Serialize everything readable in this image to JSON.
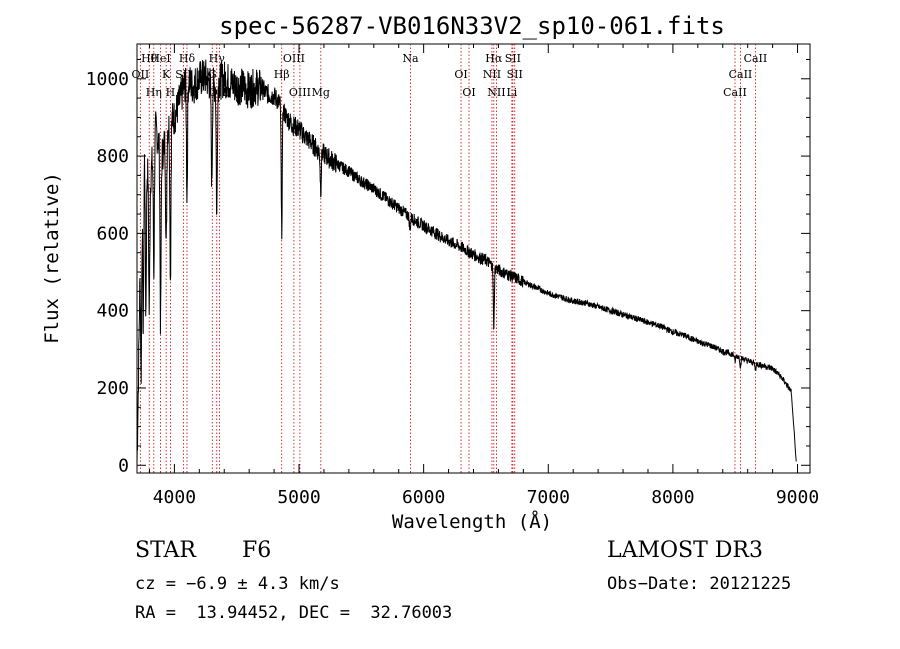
{
  "chart_data": {
    "type": "line",
    "title": "spec-56287-VB016N33V2_sp10-061.fits",
    "xlabel": "Wavelength (Å)",
    "ylabel": "Flux (relative)",
    "xlim": [
      3700,
      9100
    ],
    "ylim": [
      -20,
      1090
    ],
    "xticks": [
      4000,
      5000,
      6000,
      7000,
      8000,
      9000
    ],
    "yticks": [
      0,
      200,
      400,
      600,
      800,
      1000
    ],
    "grid": false,
    "series": [
      {
        "name": "flux",
        "anchors": [
          [
            3700,
            0
          ],
          [
            3712,
            230
          ],
          [
            3730,
            640
          ],
          [
            3760,
            830
          ],
          [
            3800,
            720
          ],
          [
            3850,
            870
          ],
          [
            3900,
            800
          ],
          [
            3950,
            880
          ],
          [
            4000,
            900
          ],
          [
            4050,
            950
          ],
          [
            4100,
            1000
          ],
          [
            4150,
            980
          ],
          [
            4200,
            1000
          ],
          [
            4250,
            1005
          ],
          [
            4300,
            980
          ],
          [
            4350,
            990
          ],
          [
            4400,
            1000
          ],
          [
            4450,
            990
          ],
          [
            4500,
            980
          ],
          [
            4550,
            980
          ],
          [
            4600,
            970
          ],
          [
            4650,
            980
          ],
          [
            4700,
            975
          ],
          [
            4750,
            960
          ],
          [
            4800,
            955
          ],
          [
            4850,
            935
          ],
          [
            4900,
            900
          ],
          [
            4950,
            880
          ],
          [
            5000,
            870
          ],
          [
            5050,
            850
          ],
          [
            5100,
            835
          ],
          [
            5150,
            815
          ],
          [
            5200,
            805
          ],
          [
            5300,
            780
          ],
          [
            5400,
            760
          ],
          [
            5500,
            735
          ],
          [
            5600,
            715
          ],
          [
            5700,
            690
          ],
          [
            5800,
            665
          ],
          [
            5900,
            640
          ],
          [
            6000,
            620
          ],
          [
            6100,
            600
          ],
          [
            6200,
            580
          ],
          [
            6300,
            565
          ],
          [
            6400,
            545
          ],
          [
            6500,
            530
          ],
          [
            6600,
            505
          ],
          [
            6700,
            490
          ],
          [
            6800,
            475
          ],
          [
            6900,
            460
          ],
          [
            7000,
            445
          ],
          [
            7100,
            435
          ],
          [
            7200,
            425
          ],
          [
            7300,
            420
          ],
          [
            7400,
            410
          ],
          [
            7500,
            400
          ],
          [
            7600,
            390
          ],
          [
            7700,
            380
          ],
          [
            7800,
            370
          ],
          [
            7900,
            360
          ],
          [
            8000,
            345
          ],
          [
            8100,
            335
          ],
          [
            8200,
            320
          ],
          [
            8300,
            310
          ],
          [
            8400,
            295
          ],
          [
            8500,
            285
          ],
          [
            8600,
            270
          ],
          [
            8700,
            260
          ],
          [
            8800,
            250
          ],
          [
            8850,
            235
          ],
          [
            8900,
            215
          ],
          [
            8950,
            190
          ],
          [
            8975,
            140
          ],
          [
            8990,
            30
          ]
        ],
        "absorption_dips": [
          [
            3733,
            0.65
          ],
          [
            3750,
            0.55
          ],
          [
            3771,
            0.5
          ],
          [
            3798,
            0.45
          ],
          [
            3835,
            0.4
          ],
          [
            3889,
            0.55
          ],
          [
            3934,
            0.35
          ],
          [
            3968,
            0.45
          ],
          [
            4101,
            0.3
          ],
          [
            4300,
            0.25
          ],
          [
            4340,
            0.35
          ],
          [
            4861,
            0.35
          ],
          [
            5174,
            0.12
          ],
          [
            5890,
            0.05
          ],
          [
            6563,
            0.3
          ],
          [
            8498,
            0.06
          ],
          [
            8542,
            0.08
          ],
          [
            8662,
            0.06
          ]
        ],
        "noise_amplitude": 45
      }
    ],
    "lines": [
      {
        "label": "Hθ",
        "wavelength": 3798
      },
      {
        "label": "OII",
        "wavelength": 3727
      },
      {
        "label": "Hη",
        "wavelength": 3835
      },
      {
        "label": "HeI",
        "wavelength": 3889
      },
      {
        "label": "K",
        "wavelength": 3934
      },
      {
        "label": "H",
        "wavelength": 3968
      },
      {
        "label": "Hδ",
        "wavelength": 4101
      },
      {
        "label": "SII",
        "wavelength": 4072
      },
      {
        "label": "OIII",
        "wavelength": 4363
      },
      {
        "label": "Hγ",
        "wavelength": 4340
      },
      {
        "label": "G",
        "wavelength": 4304
      },
      {
        "label": "OIII",
        "wavelength": 5007
      },
      {
        "label": "OIII",
        "wavelength": 4959
      },
      {
        "label": "Hβ",
        "wavelength": 4861
      },
      {
        "label": "Mg",
        "wavelength": 5175
      },
      {
        "label": "Na",
        "wavelength": 5894
      },
      {
        "label": "OI",
        "wavelength": 6300
      },
      {
        "label": "OI",
        "wavelength": 6364
      },
      {
        "label": "Hα",
        "wavelength": 6563
      },
      {
        "label": "NII",
        "wavelength": 6548
      },
      {
        "label": "NII",
        "wavelength": 6584
      },
      {
        "label": "SII",
        "wavelength": 6716
      },
      {
        "label": "SII",
        "wavelength": 6731
      },
      {
        "label": "Li",
        "wavelength": 6708
      },
      {
        "label": "CaII",
        "wavelength": 8662
      },
      {
        "label": "CaII",
        "wavelength": 8542
      },
      {
        "label": "CaII",
        "wavelength": 8498
      }
    ],
    "line_color": "#000000",
    "marker_color": "#cc0000"
  },
  "info": {
    "object_class": "STAR",
    "subclass": "F6",
    "survey": "LAMOST DR3",
    "cz": "cz = −6.9 ± 4.3 km/s",
    "obs_date": "Obs−Date: 20121225",
    "coords": "RA =  13.94452, DEC =  32.76003"
  }
}
